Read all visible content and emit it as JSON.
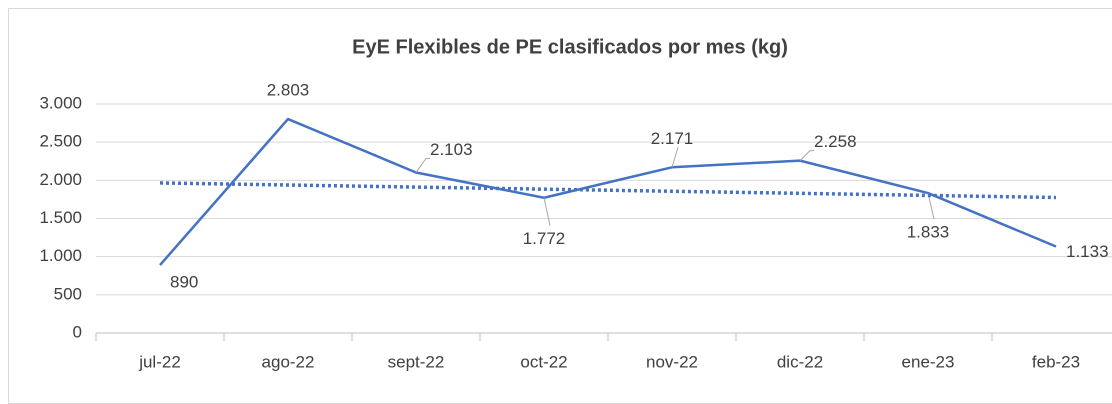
{
  "chart_data": {
    "type": "line",
    "title": "EyE Flexibles de PE clasificados por mes (kg)",
    "categories": [
      "jul-22",
      "ago-22",
      "sept-22",
      "oct-22",
      "nov-22",
      "dic-22",
      "ene-23",
      "feb-23"
    ],
    "series": [
      {
        "color": "#4472c4",
        "values": [
          890,
          2803,
          2103,
          1772,
          2171,
          2258,
          1833,
          1133
        ],
        "value_labels": [
          "890",
          "2.803",
          "2.103",
          "1.772",
          "2.171",
          "2.258",
          "1.833",
          "1.133"
        ]
      }
    ],
    "trendline": {
      "style": "dotted",
      "color": "#4472c4",
      "values": [
        1966,
        1775
      ]
    },
    "ylim": [
      0,
      3000
    ],
    "yticks": [
      0,
      500,
      {
        "value": 1000,
        "label": "1.000"
      },
      {
        "value": 1500,
        "label": "1.500"
      },
      {
        "value": 2000,
        "label": "2.000"
      },
      {
        "value": 2500,
        "label": "2.500"
      },
      {
        "value": 3000,
        "label": "3.000"
      }
    ],
    "grid": true
  }
}
